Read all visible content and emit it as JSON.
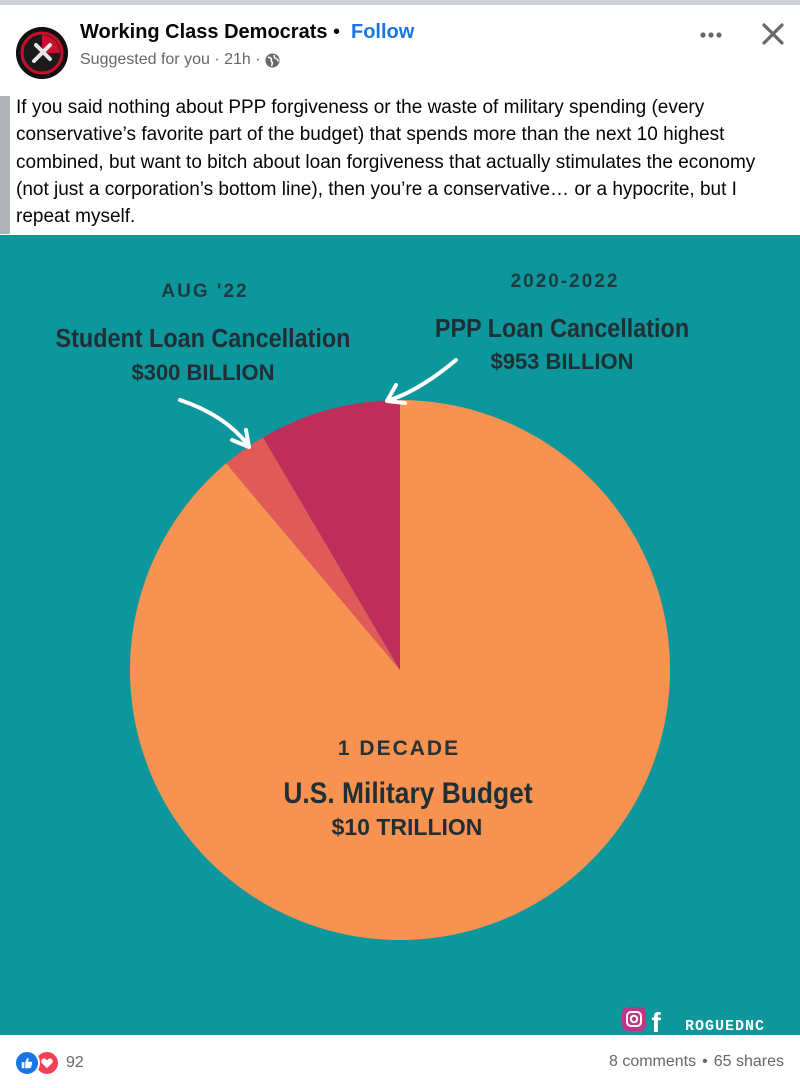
{
  "post": {
    "page_name": "Working Class Democrats",
    "separator": "•",
    "follow_label": "Follow",
    "suggested": "Suggested for you · 21h ·",
    "icons": {
      "avatar": "page-logo-avatar",
      "privacy": "globe-icon",
      "more": "more-options-icon",
      "close": "close-icon"
    },
    "text": "If you said nothing about PPP forgiveness or the waste of military spending (every conservative’s favorite part of the budget) that spends more than the next 10 highest combined, but want to bitch about loan forgiveness that actually stimulates the economy (not just a corporation’s bottom line), then you’re a conservative… or a hypocrite, but I repeat myself."
  },
  "image": {
    "background_color": "#0d979c",
    "left_date": "AUG '22",
    "left_title": "Student Loan Cancellation",
    "left_amount": "$300 BILLION",
    "right_date": "2020-2022",
    "right_title": "PPP Loan Cancellation",
    "right_amount": "$953 BILLION",
    "center_date": "1 DECADE",
    "center_title": "U.S. Military Budget",
    "center_amount": "$10 TRILLION",
    "watermark": "ROGUEDNC",
    "watermark_icons": [
      "instagram-icon",
      "facebook-icon"
    ]
  },
  "chart_data": {
    "type": "pie",
    "title": "",
    "slices": [
      {
        "label": "U.S. Military Budget",
        "value": 10000,
        "unit": "billion USD",
        "color": "#f79250"
      },
      {
        "label": "Student Loan Cancellation",
        "value": 300,
        "unit": "billion USD",
        "color": "#e25a57"
      },
      {
        "label": "PPP Loan Cancellation",
        "value": 953,
        "unit": "billion USD",
        "color": "#bf2d5a"
      }
    ]
  },
  "footer": {
    "reaction_icons": [
      "like-icon",
      "love-icon"
    ],
    "reaction_count": "92",
    "comments": "8 comments",
    "stat_separator": "•",
    "shares": "65 shares",
    "like_color": "#1b74e4",
    "love_color": "#f33e58"
  }
}
